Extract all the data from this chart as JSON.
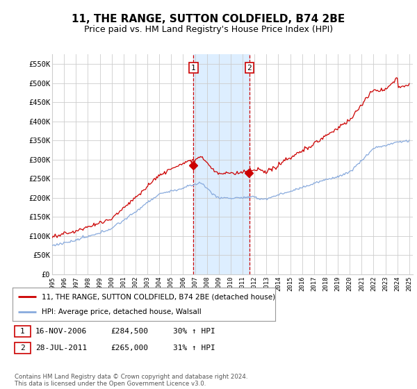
{
  "title": "11, THE RANGE, SUTTON COLDFIELD, B74 2BE",
  "subtitle": "Price paid vs. HM Land Registry's House Price Index (HPI)",
  "ylim": [
    0,
    575000
  ],
  "yticks": [
    0,
    50000,
    100000,
    150000,
    200000,
    250000,
    300000,
    350000,
    400000,
    450000,
    500000,
    550000
  ],
  "ytick_labels": [
    "£0",
    "£50K",
    "£100K",
    "£150K",
    "£200K",
    "£250K",
    "£300K",
    "£350K",
    "£400K",
    "£450K",
    "£500K",
    "£550K"
  ],
  "xstart_year": 1995,
  "xend_year": 2025,
  "sale1_date": 2006.88,
  "sale1_price": 284500,
  "sale1_label": "1",
  "sale2_date": 2011.58,
  "sale2_price": 265000,
  "sale2_label": "2",
  "highlight_color": "#ddeeff",
  "vline_color": "#cc0000",
  "property_line_color": "#cc0000",
  "hpi_line_color": "#88aadd",
  "legend_text_1": "11, THE RANGE, SUTTON COLDFIELD, B74 2BE (detached house)",
  "legend_text_2": "HPI: Average price, detached house, Walsall",
  "table_row1": [
    "1",
    "16-NOV-2006",
    "£284,500",
    "30% ↑ HPI"
  ],
  "table_row2": [
    "2",
    "28-JUL-2011",
    "£265,000",
    "31% ↑ HPI"
  ],
  "footer": "Contains HM Land Registry data © Crown copyright and database right 2024.\nThis data is licensed under the Open Government Licence v3.0.",
  "background_color": "#ffffff",
  "grid_color": "#cccccc"
}
